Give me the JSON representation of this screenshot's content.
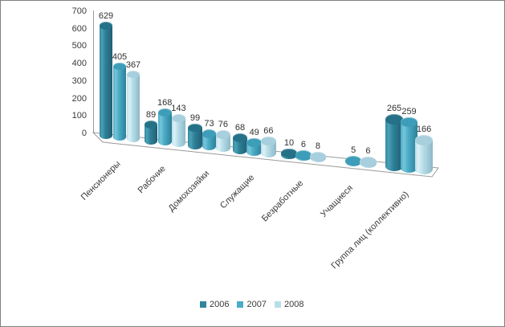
{
  "chart_data": {
    "type": "bar",
    "variant": "3d-cylinder",
    "title": "",
    "xlabel": "",
    "ylabel": "",
    "categories": [
      "Пенсионеры",
      "Рабочие",
      "Домохозяйки",
      "Служащие",
      "Безработные",
      "Учащиеся",
      "Группа лиц (коллективно)"
    ],
    "series": [
      {
        "name": "2006",
        "color": "#31859B",
        "values": [
          629,
          89,
          99,
          68,
          10,
          null,
          265
        ]
      },
      {
        "name": "2007",
        "color": "#4BACC6",
        "values": [
          405,
          168,
          73,
          49,
          6,
          5,
          259
        ]
      },
      {
        "name": "2008",
        "color": "#B7DEE8",
        "values": [
          367,
          143,
          76,
          66,
          8,
          6,
          166
        ]
      }
    ],
    "ylim": [
      0,
      700
    ],
    "y_ticks": [
      700,
      600,
      500,
      400,
      300,
      200,
      100,
      0
    ],
    "grid": false,
    "legend_position": "bottom",
    "data_labels_visible": true
  }
}
